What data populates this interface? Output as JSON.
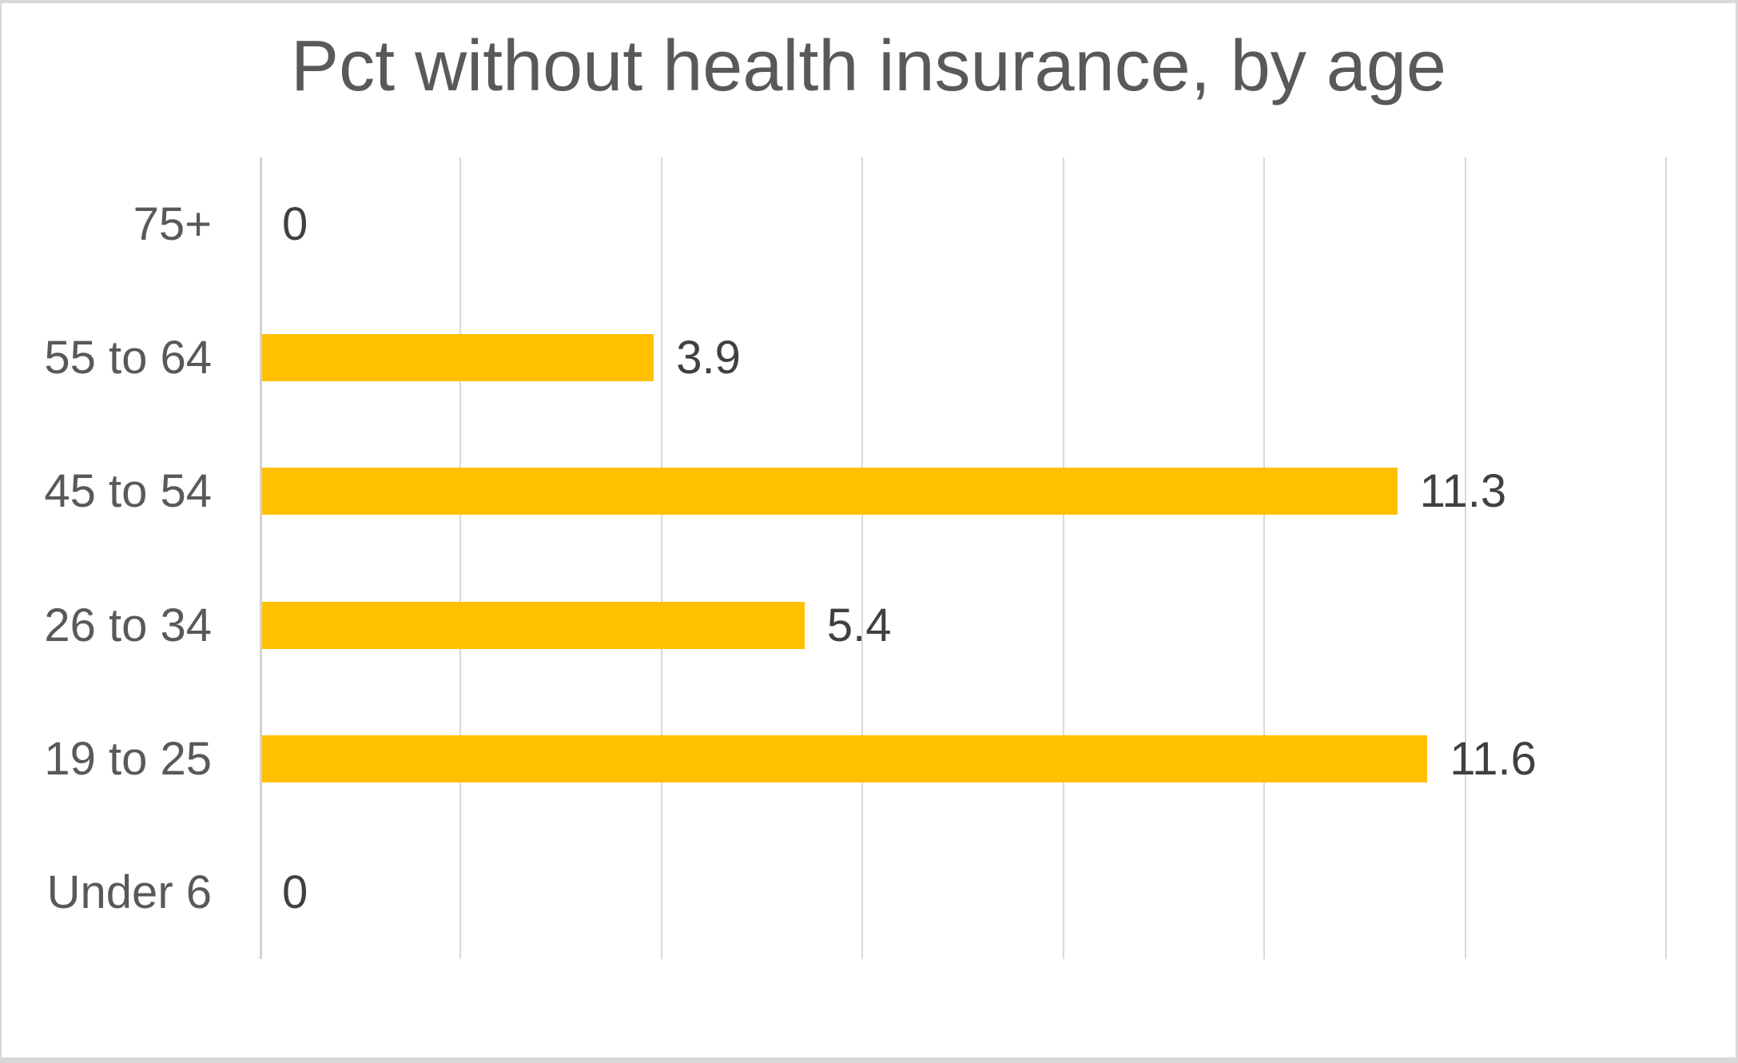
{
  "chart_data": {
    "type": "bar",
    "orientation": "horizontal",
    "title": "Pct without health insurance, by age",
    "categories": [
      "75+",
      "55 to 64",
      "45 to 54",
      "26 to 34",
      "19 to 25",
      "Under 6"
    ],
    "values": [
      0,
      3.9,
      11.3,
      5.4,
      11.6,
      0
    ],
    "data_labels": [
      "0",
      "3.9",
      "11.3",
      "5.4",
      "11.6",
      "0"
    ],
    "xlim": [
      0,
      14
    ],
    "gridline_interval": 2,
    "x_tick_labels_visible": false,
    "grid": true,
    "legend_position": "none"
  },
  "colors": {
    "bar": "#FFC000",
    "gridline": "#D9D9D9",
    "axis_line": "#D2D2D2",
    "title_text": "#595959",
    "category_text": "#595959",
    "value_text": "#404040",
    "frame_border": "#D8D8D8",
    "background": "#FFFFFF"
  }
}
